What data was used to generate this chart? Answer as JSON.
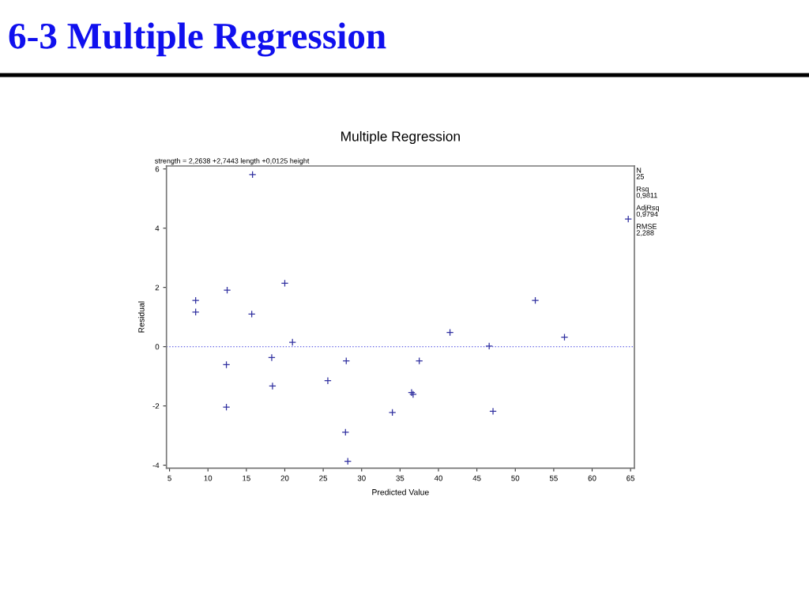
{
  "chart_data": {
    "type": "scatter",
    "title": "6-3 Multiple Regression",
    "subtitle": "Multiple Regression",
    "xlabel": "Predicted Value",
    "ylabel": "Residual",
    "annotations": [
      "strength = 2,2638 +2,7443 length +0,0125 height",
      "N\n25",
      "Rsq\n0,9811",
      "AdjRsq\n0,9794",
      "RMSE\n2,288"
    ],
    "x": [
      8.4,
      8.4,
      12.4,
      12.4,
      12.5,
      15.7,
      15.8,
      18.3,
      18.4,
      20.0,
      21.0,
      25.6,
      27.9,
      28.0,
      28.2,
      34.0,
      36.5,
      36.7,
      37.5,
      41.5,
      46.6,
      47.1,
      52.6,
      56.4,
      64.7
    ],
    "series": [
      {
        "color": "#3030a0",
        "marker": "cross",
        "values": [
          1.56,
          1.17,
          -0.61,
          -2.04,
          1.91,
          1.1,
          5.81,
          -0.37,
          -1.33,
          2.14,
          0.15,
          -1.15,
          -2.89,
          -0.48,
          -3.87,
          -2.22,
          -1.55,
          -1.61,
          -0.48,
          0.48,
          0.02,
          -2.18,
          1.56,
          0.32,
          4.31
        ]
      }
    ],
    "ref_lines": [
      {
        "axis": "y",
        "value": 0,
        "color": "#6666e6",
        "line_style": "dotted"
      }
    ],
    "xlim": [
      4.6,
      65.5
    ],
    "ylim": [
      -4.1,
      6.1
    ],
    "xticks": [
      5,
      10,
      15,
      20,
      25,
      30,
      35,
      40,
      45,
      50,
      55,
      60,
      65
    ],
    "yticks": [
      -4,
      -2,
      0,
      2,
      4,
      6
    ]
  }
}
